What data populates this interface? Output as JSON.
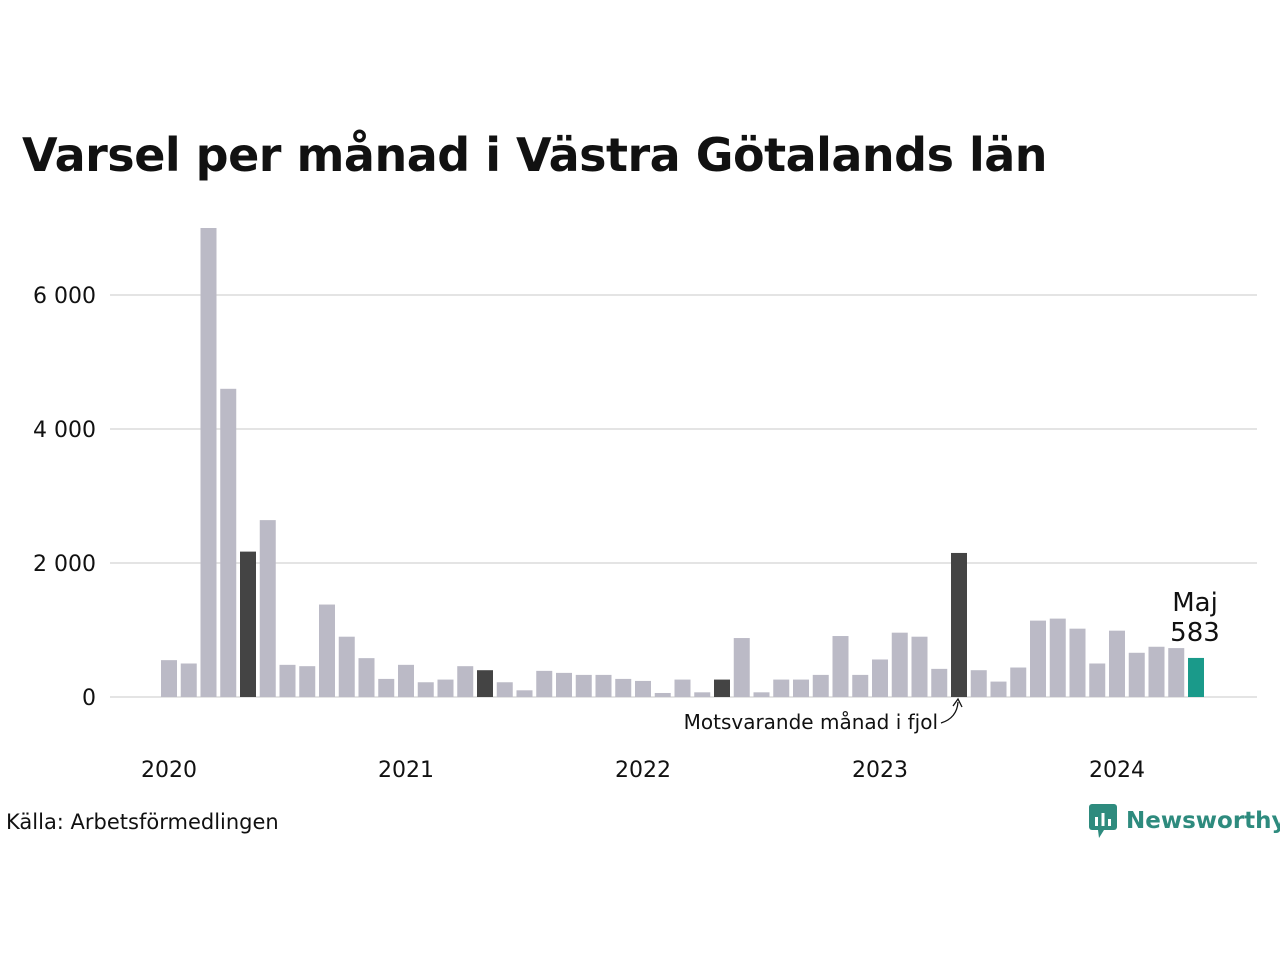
{
  "title": "Varsel per månad i Västra Götalands län",
  "source": "Källa: Arbetsförmedlingen",
  "brand": "Newsworthy",
  "colors": {
    "bar": "#bbbac6",
    "same_month": "#444444",
    "current": "#1a9a8a",
    "grid": "#e4e4e4",
    "brand": "#2e8b7e"
  },
  "chart_data": {
    "type": "bar",
    "title": "Varsel per månad i Västra Götalands län",
    "xlabel": "",
    "ylabel": "",
    "ylim": [
      0,
      7000
    ],
    "yticks": [
      0,
      2000,
      4000,
      6000
    ],
    "ytick_labels": [
      "0",
      "2 000",
      "4 000",
      "6 000"
    ],
    "xticks": [
      "2020",
      "2021",
      "2022",
      "2023",
      "2024"
    ],
    "grid": true,
    "categories": [
      "2020-01",
      "2020-02",
      "2020-03",
      "2020-04",
      "2020-05",
      "2020-06",
      "2020-07",
      "2020-08",
      "2020-09",
      "2020-10",
      "2020-11",
      "2020-12",
      "2021-01",
      "2021-02",
      "2021-03",
      "2021-04",
      "2021-05",
      "2021-06",
      "2021-07",
      "2021-08",
      "2021-09",
      "2021-10",
      "2021-11",
      "2021-12",
      "2022-01",
      "2022-02",
      "2022-03",
      "2022-04",
      "2022-05",
      "2022-06",
      "2022-07",
      "2022-08",
      "2022-09",
      "2022-10",
      "2022-11",
      "2022-12",
      "2023-01",
      "2023-02",
      "2023-03",
      "2023-04",
      "2023-05",
      "2023-06",
      "2023-07",
      "2023-08",
      "2023-09",
      "2023-10",
      "2023-11",
      "2023-12",
      "2024-01",
      "2024-02",
      "2024-03",
      "2024-04",
      "2024-05"
    ],
    "values": [
      550,
      500,
      7000,
      4600,
      2170,
      2640,
      480,
      460,
      1380,
      900,
      580,
      270,
      480,
      220,
      260,
      460,
      400,
      220,
      100,
      390,
      360,
      330,
      330,
      270,
      240,
      60,
      260,
      70,
      260,
      880,
      70,
      260,
      260,
      330,
      910,
      330,
      560,
      960,
      900,
      420,
      2150,
      400,
      230,
      440,
      1140,
      1170,
      1020,
      500,
      990,
      660,
      750,
      730,
      583
    ],
    "highlight_same_month": [
      "2020-05",
      "2021-05",
      "2022-05",
      "2023-05"
    ],
    "highlight_current": "2024-05",
    "annotations": {
      "current_month": "Maj",
      "current_value": "583",
      "same_month_note": "Motsvarande månad i fjol"
    }
  }
}
